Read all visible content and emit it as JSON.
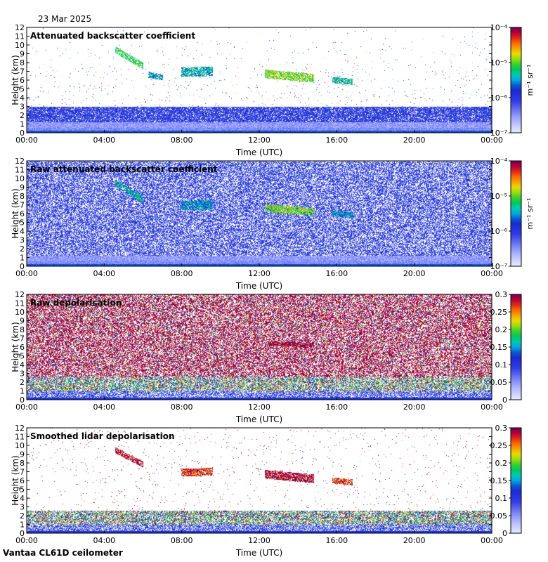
{
  "date": "23 Mar 2025",
  "footer": "Vantaa CL61D ceilometer",
  "x_ticks": [
    "00:00",
    "04:00",
    "08:00",
    "12:00",
    "16:00",
    "20:00",
    "00:00"
  ],
  "x_label": "Time (UTC)",
  "y_label": "Height (km)",
  "y_ticks": [
    "0",
    "1",
    "2",
    "3",
    "4",
    "5",
    "6",
    "7",
    "8",
    "9",
    "10",
    "11",
    "12"
  ],
  "chart_data": [
    {
      "type": "heatmap",
      "title": "Attenuated backscatter coefficient",
      "xlabel": "Time (UTC)",
      "ylabel": "Height (km)",
      "xlim": [
        0,
        24
      ],
      "ylim": [
        0,
        12
      ],
      "colorbar": {
        "scale": "log",
        "range": [
          1e-07,
          0.0001
        ],
        "ticks": [
          "10⁻⁷",
          "10⁻⁶",
          "10⁻⁵",
          "10⁻⁴"
        ],
        "unit": "m⁻¹ sr⁻¹"
      },
      "noise_top_km": 3.0,
      "noise_density": 0.02,
      "noise_high": 0.8,
      "features": [
        {
          "t0": 4.6,
          "t1": 6.0,
          "h0": 9.4,
          "h1": 7.6,
          "th": 0.35,
          "val": 0.62
        },
        {
          "t0": 6.3,
          "t1": 7.0,
          "h0": 6.6,
          "h1": 6.3,
          "th": 0.3,
          "val": 0.5
        },
        {
          "t0": 8.0,
          "t1": 9.6,
          "h0": 6.9,
          "h1": 7.0,
          "th": 0.5,
          "val": 0.52
        },
        {
          "t0": 12.3,
          "t1": 14.8,
          "h0": 6.7,
          "h1": 6.2,
          "th": 0.45,
          "val": 0.68
        },
        {
          "t0": 15.8,
          "t1": 16.8,
          "h0": 6.0,
          "h1": 5.8,
          "th": 0.3,
          "val": 0.55
        }
      ]
    },
    {
      "type": "heatmap",
      "title": "Raw attenuated backscatter coefficient",
      "xlabel": "Time (UTC)",
      "ylabel": "Height (km)",
      "xlim": [
        0,
        24
      ],
      "ylim": [
        0,
        12
      ],
      "colorbar": {
        "scale": "log",
        "range": [
          1e-07,
          0.0001
        ],
        "ticks": [
          "10⁻⁷",
          "10⁻⁶",
          "10⁻⁵",
          "10⁻⁴"
        ],
        "unit": "m⁻¹ sr⁻¹"
      },
      "noise_top_km": 12,
      "noise_density": 0.35,
      "noise_high": 0.42,
      "features": [
        {
          "t0": 4.6,
          "t1": 6.0,
          "h0": 9.4,
          "h1": 7.6,
          "th": 0.35,
          "val": 0.55
        },
        {
          "t0": 8.0,
          "t1": 9.6,
          "h0": 6.9,
          "h1": 7.0,
          "th": 0.5,
          "val": 0.5
        },
        {
          "t0": 12.3,
          "t1": 14.8,
          "h0": 6.6,
          "h1": 6.2,
          "th": 0.4,
          "val": 0.68
        },
        {
          "t0": 15.8,
          "t1": 16.8,
          "h0": 6.0,
          "h1": 5.8,
          "th": 0.3,
          "val": 0.5
        }
      ]
    },
    {
      "type": "heatmap",
      "title": "Raw depolarisation",
      "xlabel": "Time (UTC)",
      "ylabel": "Height (km)",
      "xlim": [
        0,
        24
      ],
      "ylim": [
        0,
        12
      ],
      "colorbar": {
        "scale": "linear",
        "range": [
          0,
          0.3
        ],
        "ticks": [
          "0",
          "0.05",
          "0.1",
          "0.15",
          "0.2",
          "0.25",
          "0.3"
        ]
      },
      "noise_top_km": 12,
      "noise_density": 0.6,
      "noise_high": 0.95,
      "features": [
        {
          "t0": 12.5,
          "t1": 14.8,
          "h0": 6.4,
          "h1": 6.2,
          "th": 0.2,
          "val": 0.98
        }
      ]
    },
    {
      "type": "heatmap",
      "title": "Smoothed lidar depolarisation",
      "xlabel": "Time (UTC)",
      "ylabel": "Height (km)",
      "xlim": [
        0,
        24
      ],
      "ylim": [
        0,
        12
      ],
      "colorbar": {
        "scale": "linear",
        "range": [
          0,
          0.3
        ],
        "ticks": [
          "0",
          "0.05",
          "0.1",
          "0.15",
          "0.2",
          "0.25",
          "0.3"
        ]
      },
      "noise_top_km": 12,
      "noise_density": 0.012,
      "noise_high": 0.95,
      "features": [
        {
          "t0": 4.6,
          "t1": 6.0,
          "h0": 9.4,
          "h1": 7.8,
          "th": 0.3,
          "val": 0.95
        },
        {
          "t0": 8.0,
          "t1": 9.6,
          "h0": 6.9,
          "h1": 7.0,
          "th": 0.4,
          "val": 0.9
        },
        {
          "t0": 12.3,
          "t1": 14.8,
          "h0": 6.7,
          "h1": 6.2,
          "th": 0.45,
          "val": 0.97
        },
        {
          "t0": 15.8,
          "t1": 16.8,
          "h0": 6.0,
          "h1": 5.8,
          "th": 0.3,
          "val": 0.9
        }
      ]
    }
  ]
}
